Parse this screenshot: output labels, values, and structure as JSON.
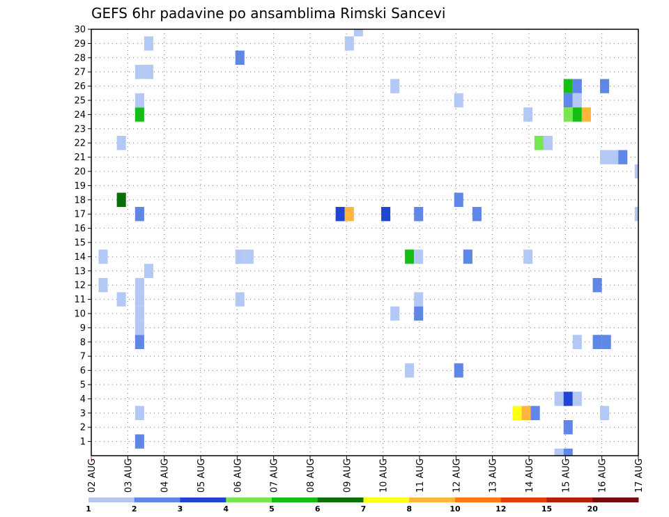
{
  "chart_data": {
    "type": "heatmap",
    "title": "GEFS 6hr padavine po ansamblima Rimski Sancevi",
    "xlabel": "",
    "ylabel": "",
    "x_tick_labels": [
      "02 AUG",
      "03 AUG",
      "04 AUG",
      "05 AUG",
      "06 AUG",
      "07 AUG",
      "08 AUG",
      "09 AUG",
      "10 AUG",
      "11 AUG",
      "12 AUG",
      "13 AUG",
      "14 AUG",
      "15 AUG",
      "16 AUG",
      "17 AUG"
    ],
    "x_range_days": [
      0,
      15
    ],
    "y_tick_labels": [
      "1",
      "2",
      "3",
      "4",
      "5",
      "6",
      "7",
      "8",
      "9",
      "10",
      "11",
      "12",
      "13",
      "14",
      "15",
      "16",
      "17",
      "18",
      "19",
      "20",
      "21",
      "22",
      "23",
      "24",
      "25",
      "26",
      "27",
      "28",
      "29",
      "30"
    ],
    "y_range": [
      0,
      30
    ],
    "grid": true,
    "colorbar": {
      "labels": [
        "1",
        "2",
        "3",
        "4",
        "5",
        "6",
        "7",
        "8",
        "10",
        "12",
        "15",
        "20"
      ],
      "colors": [
        "#b4c8f5",
        "#5f87e6",
        "#1e46d2",
        "#78e650",
        "#14be14",
        "#0a6e0a",
        "#ffff14",
        "#ffb43c",
        "#ff7814",
        "#e63c0a",
        "#b41e0a",
        "#780a0a"
      ],
      "placement": "bottom"
    },
    "cells": [
      {
        "day": 1.2,
        "member": 1,
        "color": "#5f87e6"
      },
      {
        "day": 1.2,
        "member": 3,
        "color": "#b4c8f5"
      },
      {
        "day": 1.2,
        "member": 8,
        "color": "#5f87e6"
      },
      {
        "day": 1.2,
        "member": 9,
        "color": "#b4c8f5"
      },
      {
        "day": 1.2,
        "member": 10,
        "color": "#b4c8f5"
      },
      {
        "day": 1.2,
        "member": 11,
        "color": "#b4c8f5"
      },
      {
        "day": 1.2,
        "member": 12,
        "color": "#b4c8f5"
      },
      {
        "day": 1.2,
        "member": 17,
        "color": "#5f87e6"
      },
      {
        "day": 1.2,
        "member": 24,
        "color": "#14be14"
      },
      {
        "day": 1.2,
        "member": 25,
        "color": "#b4c8f5"
      },
      {
        "day": 1.2,
        "member": 27,
        "color": "#b4c8f5"
      },
      {
        "day": 1.45,
        "member": 27,
        "color": "#b4c8f5"
      },
      {
        "day": 1.45,
        "member": 29,
        "color": "#b4c8f5"
      },
      {
        "day": 1.45,
        "member": 13,
        "color": "#b4c8f5"
      },
      {
        "day": 0.7,
        "member": 11,
        "color": "#b4c8f5"
      },
      {
        "day": 0.7,
        "member": 22,
        "color": "#b4c8f5"
      },
      {
        "day": 0.7,
        "member": 18,
        "color": "#0a6e0a"
      },
      {
        "day": 0.2,
        "member": 12,
        "color": "#b4c8f5"
      },
      {
        "day": 0.2,
        "member": 14,
        "color": "#b4c8f5"
      },
      {
        "day": 3.95,
        "member": 28,
        "color": "#5f87e6"
      },
      {
        "day": 3.95,
        "member": 14,
        "color": "#b4c8f5"
      },
      {
        "day": 4.2,
        "member": 14,
        "color": "#b4c8f5"
      },
      {
        "day": 3.95,
        "member": 11,
        "color": "#b4c8f5"
      },
      {
        "day": 6.7,
        "member": 17,
        "color": "#1e46d2"
      },
      {
        "day": 6.95,
        "member": 17,
        "color": "#ffb43c"
      },
      {
        "day": 6.95,
        "member": 29,
        "color": "#b4c8f5"
      },
      {
        "day": 7.2,
        "member": 30,
        "color": "#b4c8f5"
      },
      {
        "day": 7.95,
        "member": 17,
        "color": "#1e46d2"
      },
      {
        "day": 8.2,
        "member": 26,
        "color": "#b4c8f5"
      },
      {
        "day": 8.2,
        "member": 10,
        "color": "#b4c8f5"
      },
      {
        "day": 8.6,
        "member": 14,
        "color": "#14be14"
      },
      {
        "day": 8.85,
        "member": 14,
        "color": "#b4c8f5"
      },
      {
        "day": 8.6,
        "member": 6,
        "color": "#b4c8f5"
      },
      {
        "day": 8.85,
        "member": 17,
        "color": "#5f87e6"
      },
      {
        "day": 8.85,
        "member": 11,
        "color": "#b4c8f5"
      },
      {
        "day": 8.85,
        "member": 10,
        "color": "#5f87e6"
      },
      {
        "day": 9.95,
        "member": 25,
        "color": "#b4c8f5"
      },
      {
        "day": 9.95,
        "member": 18,
        "color": "#5f87e6"
      },
      {
        "day": 9.95,
        "member": 6,
        "color": "#5f87e6"
      },
      {
        "day": 10.2,
        "member": 14,
        "color": "#5f87e6"
      },
      {
        "day": 10.45,
        "member": 17,
        "color": "#5f87e6"
      },
      {
        "day": 11.55,
        "member": 3,
        "color": "#ffff14"
      },
      {
        "day": 11.8,
        "member": 3,
        "color": "#ffb43c"
      },
      {
        "day": 12.05,
        "member": 3,
        "color": "#5f87e6"
      },
      {
        "day": 11.85,
        "member": 24,
        "color": "#b4c8f5"
      },
      {
        "day": 11.85,
        "member": 14,
        "color": "#b4c8f5"
      },
      {
        "day": 12.15,
        "member": 22,
        "color": "#78e650"
      },
      {
        "day": 12.4,
        "member": 22,
        "color": "#b4c8f5"
      },
      {
        "day": 12.95,
        "member": 26,
        "color": "#14be14"
      },
      {
        "day": 13.2,
        "member": 26,
        "color": "#5f87e6"
      },
      {
        "day": 12.95,
        "member": 25,
        "color": "#5f87e6"
      },
      {
        "day": 13.2,
        "member": 25,
        "color": "#b4c8f5"
      },
      {
        "day": 12.95,
        "member": 24,
        "color": "#78e650"
      },
      {
        "day": 13.2,
        "member": 24,
        "color": "#14be14"
      },
      {
        "day": 13.45,
        "member": 24,
        "color": "#ffb43c"
      },
      {
        "day": 12.7,
        "member": 4,
        "color": "#b4c8f5"
      },
      {
        "day": 12.95,
        "member": 4,
        "color": "#1e46d2"
      },
      {
        "day": 13.2,
        "member": 4,
        "color": "#b4c8f5"
      },
      {
        "day": 12.95,
        "member": 2,
        "color": "#5f87e6"
      },
      {
        "day": 12.7,
        "member": 0,
        "color": "#b4c8f5"
      },
      {
        "day": 12.95,
        "member": 0,
        "color": "#5f87e6"
      },
      {
        "day": 13.2,
        "member": 8,
        "color": "#b4c8f5"
      },
      {
        "day": 13.75,
        "member": 12,
        "color": "#5f87e6"
      },
      {
        "day": 13.75,
        "member": 8,
        "color": "#5f87e6"
      },
      {
        "day": 14.0,
        "member": 8,
        "color": "#5f87e6"
      },
      {
        "day": 13.95,
        "member": 26,
        "color": "#5f87e6"
      },
      {
        "day": 13.95,
        "member": 21,
        "color": "#b4c8f5"
      },
      {
        "day": 14.2,
        "member": 21,
        "color": "#b4c8f5"
      },
      {
        "day": 14.45,
        "member": 21,
        "color": "#5f87e6"
      },
      {
        "day": 13.95,
        "member": 3,
        "color": "#b4c8f5"
      },
      {
        "day": 14.9,
        "member": 20,
        "color": "#b4c8f5"
      },
      {
        "day": 14.9,
        "member": 17,
        "color": "#b4c8f5"
      }
    ]
  }
}
